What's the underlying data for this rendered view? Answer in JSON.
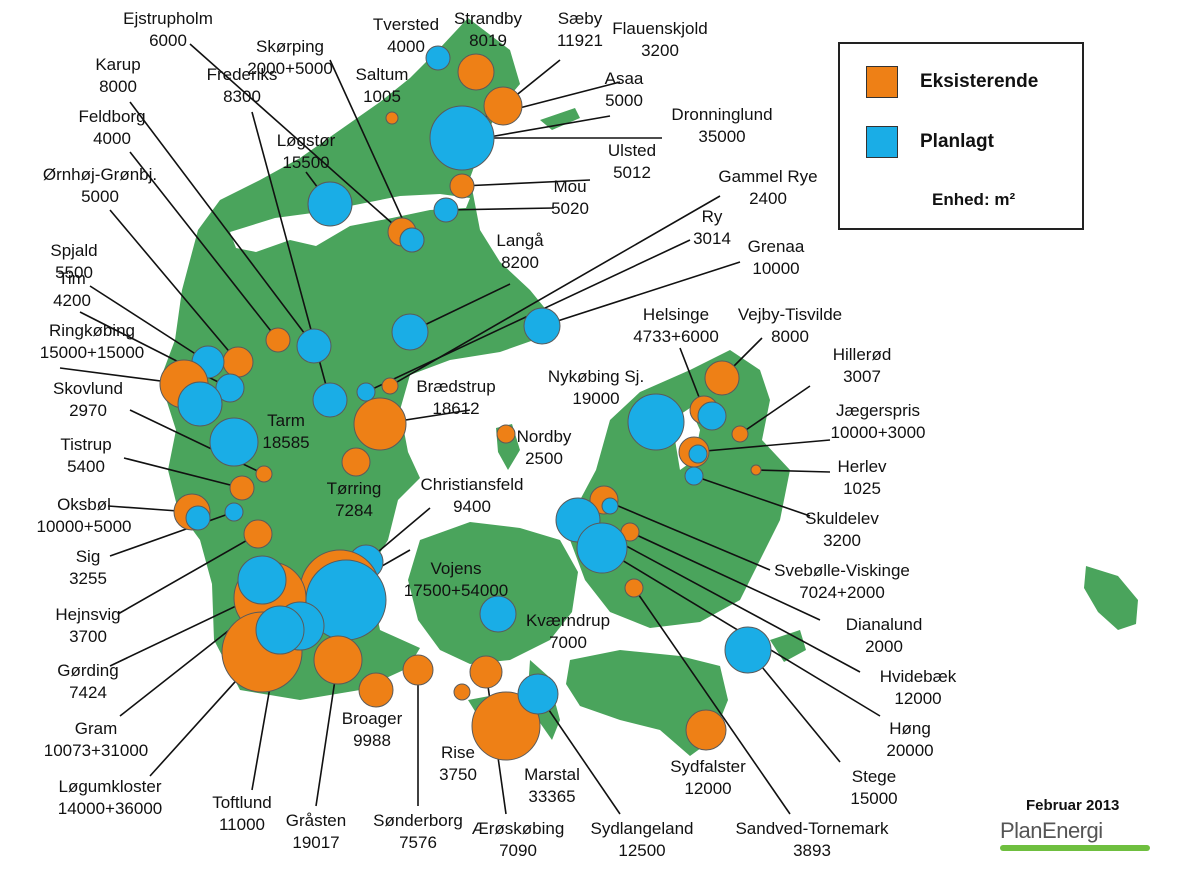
{
  "legend": {
    "existing_label": "Eksisterende",
    "planned_label": "Planlagt",
    "unit_label": "Enhed: m²"
  },
  "date_label": "Februar 2013",
  "brand": "PlanEnergi",
  "colors": {
    "existing": "#ee8016",
    "planned": "#1aade6",
    "land": "#4aa45c",
    "water": "#ffffff",
    "leader": "#111111"
  },
  "plants": [
    {
      "name": "Ejstrupholm",
      "size": "6000",
      "status": "existing"
    },
    {
      "name": "Skørping",
      "size": "2000+5000",
      "status": "mixed"
    },
    {
      "name": "Tversted",
      "size": "4000",
      "status": "planned"
    },
    {
      "name": "Strandby",
      "size": "8019",
      "status": "existing"
    },
    {
      "name": "Sæby",
      "size": "11921",
      "status": "existing"
    },
    {
      "name": "Flauenskjold",
      "size": "3200",
      "status": "existing"
    },
    {
      "name": "Karup",
      "size": "8000",
      "status": "planned"
    },
    {
      "name": "Frederiks",
      "size": "8300",
      "status": "planned"
    },
    {
      "name": "Saltum",
      "size": "1005",
      "status": "existing"
    },
    {
      "name": "Asaa",
      "size": "5000",
      "status": "planned"
    },
    {
      "name": "Feldborg",
      "size": "4000",
      "status": "existing"
    },
    {
      "name": "Løgstør",
      "size": "15500",
      "status": "planned"
    },
    {
      "name": "Dronninglund",
      "size": "35000",
      "status": "planned"
    },
    {
      "name": "Ulsted",
      "size": "5012",
      "status": "existing"
    },
    {
      "name": "Ørnhøj-Grønbj.",
      "size": "5000",
      "status": "existing"
    },
    {
      "name": "Mou",
      "size": "5020",
      "status": "planned"
    },
    {
      "name": "Gammel Rye",
      "size": "2400",
      "status": "existing"
    },
    {
      "name": "Spjald",
      "size": "5500",
      "status": "planned"
    },
    {
      "name": "Ry",
      "size": "3014",
      "status": "planned"
    },
    {
      "name": "Langå",
      "size": "8200",
      "status": "planned"
    },
    {
      "name": "Grenaa",
      "size": "10000",
      "status": "planned"
    },
    {
      "name": "Tim",
      "size": "4200",
      "status": "planned"
    },
    {
      "name": "Helsinge",
      "size": "4733+6000",
      "status": "mixed"
    },
    {
      "name": "Vejby-Tisvilde",
      "size": "8000",
      "status": "existing"
    },
    {
      "name": "Ringkøbing",
      "size": "15000+15000",
      "status": "mixed"
    },
    {
      "name": "Hillerød",
      "size": "3007",
      "status": "existing"
    },
    {
      "name": "Skovlund",
      "size": "2970",
      "status": "existing"
    },
    {
      "name": "Brædstrup",
      "size": "18612",
      "status": "existing"
    },
    {
      "name": "Nykøbing Sj.",
      "size": "19000",
      "status": "planned"
    },
    {
      "name": "Jægerspris",
      "size": "10000+3000",
      "status": "mixed"
    },
    {
      "name": "Tarm",
      "size": "18585",
      "status": "planned"
    },
    {
      "name": "Nordby",
      "size": "2500",
      "status": "existing"
    },
    {
      "name": "Tistrup",
      "size": "5400",
      "status": "existing"
    },
    {
      "name": "Herlev",
      "size": "1025",
      "status": "existing"
    },
    {
      "name": "Tørring",
      "size": "7284",
      "status": "existing"
    },
    {
      "name": "Christiansfeld",
      "size": "9400",
      "status": "planned"
    },
    {
      "name": "Oksbøl",
      "size": "10000+5000",
      "status": "mixed"
    },
    {
      "name": "Skuldelev",
      "size": "3200",
      "status": "planned"
    },
    {
      "name": "Sig",
      "size": "3255",
      "status": "planned"
    },
    {
      "name": "Vojens",
      "size": "17500+54000",
      "status": "mixed"
    },
    {
      "name": "Svebølle-Viskinge",
      "size": "7024+2000",
      "status": "mixed"
    },
    {
      "name": "Hejnsvig",
      "size": "3700",
      "status": "existing"
    },
    {
      "name": "Dianalund",
      "size": "2000",
      "status": "existing"
    },
    {
      "name": "Kværndrup",
      "size": "7000",
      "status": "planned"
    },
    {
      "name": "Gørding",
      "size": "7424",
      "status": "existing"
    },
    {
      "name": "Hvidebæk",
      "size": "12000",
      "status": "planned"
    },
    {
      "name": "Gram",
      "size": "10073+31000",
      "status": "mixed"
    },
    {
      "name": "Høng",
      "size": "20000",
      "status": "planned"
    },
    {
      "name": "Løgumkloster",
      "size": "14000+36000",
      "status": "mixed"
    },
    {
      "name": "Broager",
      "size": "9988",
      "status": "existing"
    },
    {
      "name": "Rise",
      "size": "3750",
      "status": "existing"
    },
    {
      "name": "Marstal",
      "size": "33365",
      "status": "existing"
    },
    {
      "name": "Sydfalster",
      "size": "12000",
      "status": "existing"
    },
    {
      "name": "Stege",
      "size": "15000",
      "status": "planned"
    },
    {
      "name": "Toftlund",
      "size": "11000",
      "status": "planned"
    },
    {
      "name": "Gråsten",
      "size": "19017",
      "status": "existing"
    },
    {
      "name": "Sønderborg",
      "size": "7576",
      "status": "existing"
    },
    {
      "name": "Ærøskøbing",
      "size": "7090",
      "status": "existing"
    },
    {
      "name": "Sydlangeland",
      "size": "12500",
      "status": "planned"
    },
    {
      "name": "Sandved-Tornemark",
      "size": "3893",
      "status": "existing"
    }
  ]
}
